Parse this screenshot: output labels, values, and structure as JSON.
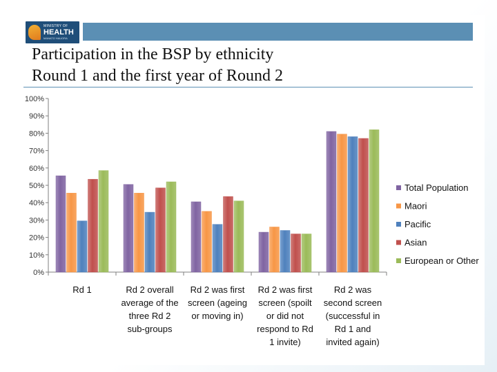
{
  "header": {
    "logo": {
      "line1": "MINISTRY OF",
      "line2": "HEALTH",
      "line3": "MANATŪ HAUORA"
    },
    "title_line1": "Participation in the BSP by ethnicity",
    "title_line2": "Round 1 and the first year of Round 2"
  },
  "chart_data": {
    "type": "bar",
    "title": "",
    "xlabel": "",
    "ylabel": "",
    "ylim": [
      0,
      100
    ],
    "y_ticks": [
      0,
      10,
      20,
      30,
      40,
      50,
      60,
      70,
      80,
      90,
      100
    ],
    "y_tick_format": "percent",
    "grid": false,
    "legend_position": "right",
    "categories": [
      [
        "Rd 1"
      ],
      [
        "Rd 2 overall",
        "average of the",
        "three Rd 2",
        "sub-groups"
      ],
      [
        "Rd 2 was first",
        "screen (ageing",
        "or moving in)"
      ],
      [
        "Rd 2 was first",
        "screen (spoilt",
        "or did not",
        "respond to Rd",
        "1 invite)"
      ],
      [
        "Rd 2 was",
        "second screen",
        "(successful in",
        "Rd 1 and",
        "invited again)"
      ]
    ],
    "series": [
      {
        "name": "Total Population",
        "color": "#8064a2",
        "values": [
          55.5,
          50.5,
          40.5,
          23,
          81
        ]
      },
      {
        "name": "Maori",
        "color": "#f79646",
        "values": [
          45.5,
          45.5,
          35,
          26,
          79.5
        ]
      },
      {
        "name": "Pacific",
        "color": "#4f81bd",
        "values": [
          29.5,
          34.5,
          27.5,
          24,
          78
        ]
      },
      {
        "name": "Asian",
        "color": "#c0504d",
        "values": [
          53.5,
          48.5,
          43.5,
          22,
          77
        ]
      },
      {
        "name": "European or Other",
        "color": "#9bbb59",
        "values": [
          58.5,
          52,
          41,
          22,
          82
        ]
      }
    ]
  }
}
